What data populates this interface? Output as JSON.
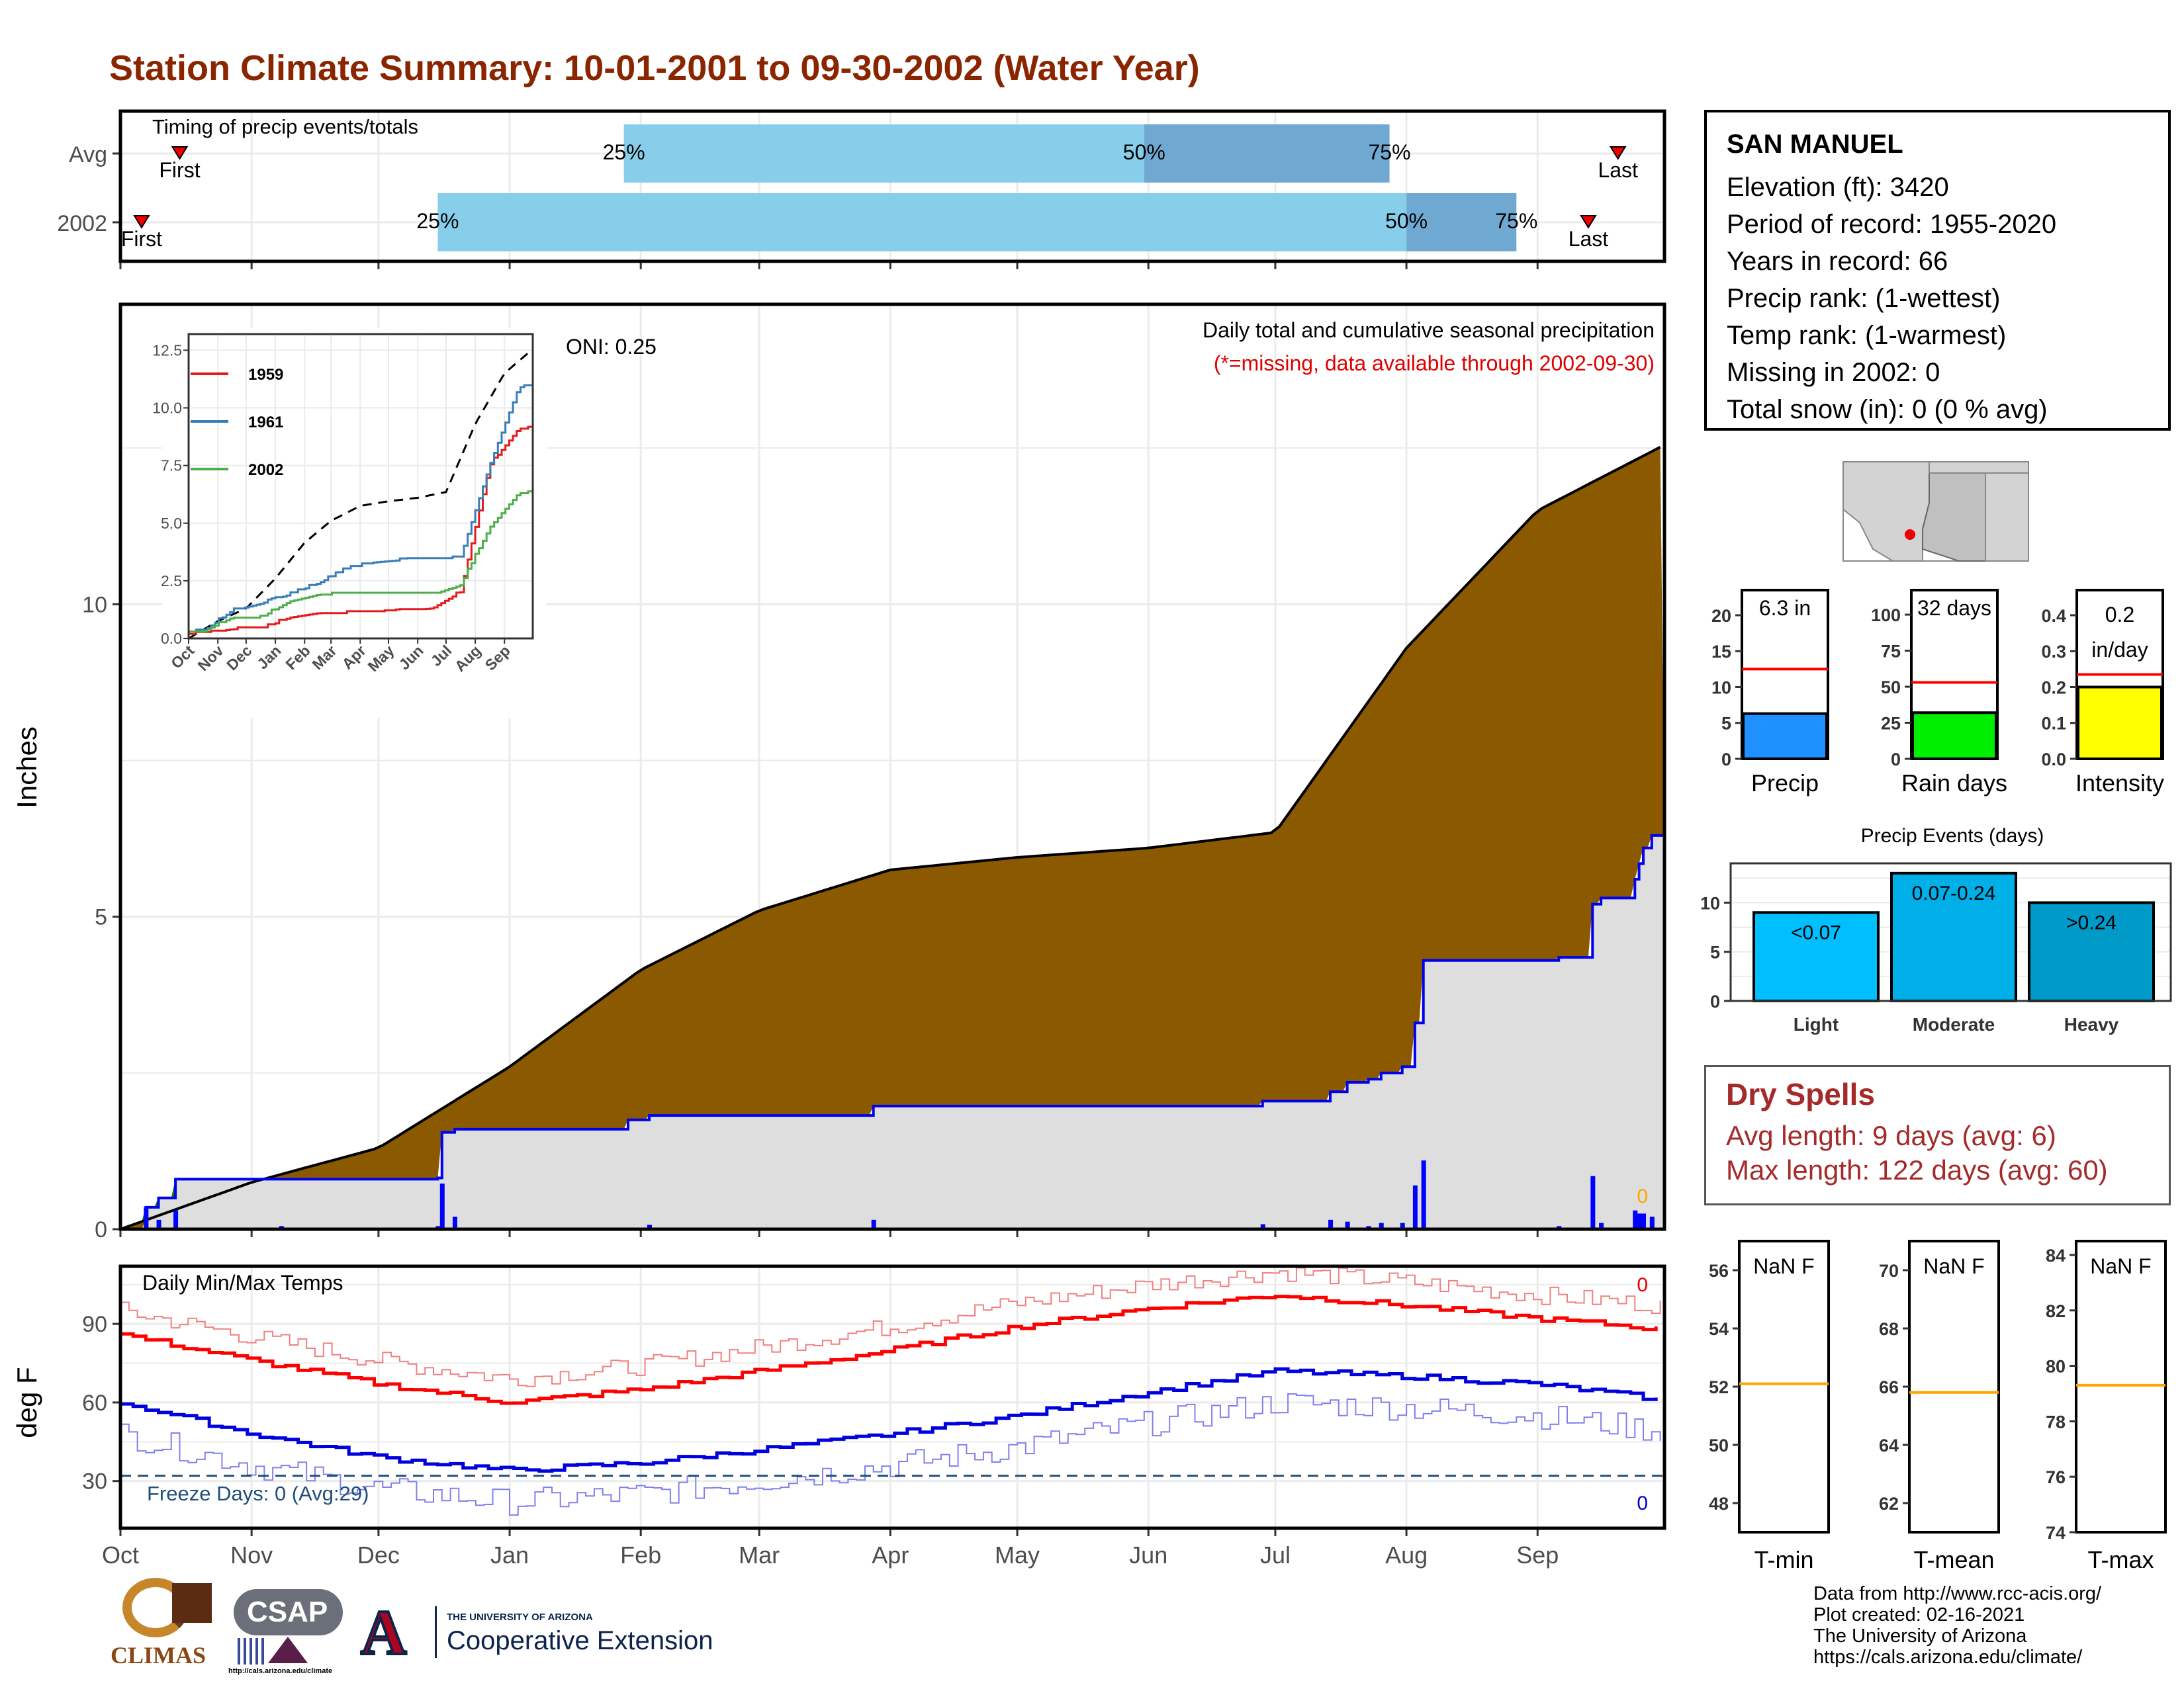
{
  "title": "Station Climate Summary: 10-01-2001 to 09-30-2002 (Water Year)",
  "months": [
    "Oct",
    "Nov",
    "Dec",
    "Jan",
    "Feb",
    "Mar",
    "Apr",
    "May",
    "Jun",
    "Jul",
    "Aug",
    "Sep"
  ],
  "timing": {
    "label": "Timing of precip events/totals",
    "rows": [
      {
        "name": "Avg",
        "first": "First",
        "last": "Last",
        "pct25": "25%",
        "pct50": "50%",
        "pct75": "75%",
        "first_day": 14,
        "p25_day": 119,
        "p50_day": 242,
        "p75_day": 300,
        "last_day": 354
      },
      {
        "name": "2002",
        "first": "First",
        "last": "Last",
        "pct25": "25%",
        "pct50": "50%",
        "pct75": "75%",
        "first_day": 5,
        "p25_day": 75,
        "p50_day": 304,
        "p75_day": 330,
        "last_day": 347
      }
    ]
  },
  "precip": {
    "ylabel": "Inches",
    "header": "Daily total and cumulative seasonal precipitation",
    "missing_note": "(*=missing, data available through 2002-09-30)",
    "oni": "ONI: 0.25",
    "missing_count": "0",
    "yticks": [
      "0",
      "5",
      "10"
    ],
    "colors": {
      "deficit": "#8b5a00",
      "surplus": "#008000",
      "cumulative": "#0000ee",
      "normal": "#000000"
    }
  },
  "inset": {
    "yticks": [
      "0.0",
      "2.5",
      "5.0",
      "7.5",
      "10.0",
      "12.5"
    ],
    "months": [
      "Oct",
      "Nov",
      "Dec",
      "Jan",
      "Feb",
      "Mar",
      "Apr",
      "May",
      "Jun",
      "Jul",
      "Aug",
      "Sep"
    ],
    "legend": [
      {
        "year": "1959",
        "color": "#e41a1c"
      },
      {
        "year": "1961",
        "color": "#377eb8"
      },
      {
        "year": "2002",
        "color": "#4daf4a"
      }
    ]
  },
  "temps": {
    "ylabel": "deg F",
    "label": "Daily Min/Max Temps",
    "freeze": "Freeze Days: 0 (Avg:29)",
    "max_count": "0",
    "min_count": "0",
    "yticks": [
      "30",
      "60",
      "90"
    ]
  },
  "station": {
    "name": "SAN MANUEL",
    "lines": [
      "Elevation (ft): 3420",
      "Period of record: 1955-2020",
      "Years in record: 66",
      "Precip rank:  (1-wettest)",
      "Temp rank:  (1-warmest)",
      "Missing in 2002: 0",
      "Total snow (in): 0 (0 % avg)"
    ]
  },
  "gauges": [
    {
      "label": "Precip",
      "value_text": "6.3 in",
      "value": 6.3,
      "avg": 12.5,
      "max": 23.5,
      "ticks": [
        "0",
        "5",
        "10",
        "15",
        "20"
      ],
      "color": "#1e90ff"
    },
    {
      "label": "Rain days",
      "value_text": "32 days",
      "value": 32,
      "avg": 53,
      "max": 117,
      "ticks": [
        "0",
        "25",
        "50",
        "75",
        "100"
      ],
      "color": "#00ee00"
    },
    {
      "label": "Intensity",
      "value_text1": "0.2",
      "value_text2": "in/day",
      "value": 0.2,
      "avg": 0.235,
      "max": 0.47,
      "ticks": [
        "0.0",
        "0.1",
        "0.2",
        "0.3",
        "0.4"
      ],
      "color": "#ffff00"
    }
  ],
  "events": {
    "title": "Precip Events (days)",
    "yticks": [
      "0",
      "5",
      "10"
    ],
    "bars": [
      {
        "label": "Light",
        "text": "<0.07",
        "value": 9,
        "color": "#00bfff"
      },
      {
        "label": "Moderate",
        "text": "0.07-0.24",
        "value": 13,
        "color": "#00afe8"
      },
      {
        "label": "Heavy",
        "text": ">0.24",
        "value": 10,
        "color": "#009ac8"
      }
    ]
  },
  "dry_spells": {
    "title": "Dry Spells",
    "avg_line": "Avg length: 9 days (avg: 6)",
    "max_line": "Max length: 122 days (avg: 60)"
  },
  "temp_gauges": [
    {
      "label": "T-min",
      "value_text": "NaN F",
      "ticks": [
        "48",
        "50",
        "52",
        "54",
        "56"
      ],
      "ref": 52.1
    },
    {
      "label": "T-mean",
      "value_text": "NaN F",
      "ticks": [
        "62",
        "64",
        "66",
        "68",
        "70"
      ],
      "ref": 65.8
    },
    {
      "label": "T-max",
      "value_text": "NaN F",
      "ticks": [
        "74",
        "76",
        "78",
        "80",
        "82",
        "84"
      ],
      "ref": 79.3
    }
  ],
  "footer": [
    "Data from http://www.rcc-acis.org/",
    "Plot created: 02-16-2021",
    "The University of Arizona",
    "https://cals.arizona.edu/climate/"
  ],
  "logos": {
    "climas": "CLIMAS",
    "csap": "CSAP",
    "csap_url": "http://cals.arizona.edu/climate",
    "ua_small": "THE UNIVERSITY OF ARIZONA",
    "coop": "Cooperative Extension",
    "ua_letter": "A"
  },
  "chart_data": [
    {
      "type": "bar",
      "title": "Timing of precip events/totals",
      "categories": [
        "Avg",
        "2002"
      ],
      "series": [
        {
          "name": "25%",
          "values": [
            119,
            75
          ]
        },
        {
          "name": "50%",
          "values": [
            242,
            304
          ]
        },
        {
          "name": "75%",
          "values": [
            300,
            330
          ]
        }
      ]
    },
    {
      "type": "area",
      "title": "Daily total and cumulative seasonal precipitation",
      "ylabel": "Inches",
      "ylim": [
        0,
        14
      ],
      "x": [
        "Oct",
        "Nov",
        "Dec",
        "Jan",
        "Feb",
        "Mar",
        "Apr",
        "May",
        "Jun",
        "Jul",
        "Aug",
        "Sep",
        "Sep30"
      ],
      "series": [
        {
          "name": "normal cumulative",
          "values": [
            0,
            0.75,
            1.3,
            2.6,
            4.15,
            5.1,
            5.75,
            5.95,
            6.1,
            6.35,
            9.3,
            11.5,
            12.55
          ]
        },
        {
          "name": "2002 cumulative",
          "values": [
            0,
            0.82,
            0.82,
            1.6,
            1.82,
            1.97,
            1.97,
            1.97,
            1.97,
            1.97,
            4.3,
            5.3,
            6.3
          ]
        }
      ]
    },
    {
      "type": "line",
      "title": "Daily Min/Max Temps",
      "ylabel": "deg F",
      "x": [
        "Oct",
        "Nov",
        "Dec",
        "Jan",
        "Feb",
        "Mar",
        "Apr",
        "May",
        "Jun",
        "Jul",
        "Aug",
        "Sep",
        "Sep30"
      ],
      "series": [
        {
          "name": "normal max",
          "values": [
            86,
            76,
            67,
            60,
            65,
            72,
            80,
            89,
            96,
            101,
            97,
            92,
            88
          ]
        },
        {
          "name": "normal min",
          "values": [
            60,
            48,
            39,
            34,
            37,
            42,
            48,
            55,
            64,
            72,
            70,
            67,
            61
          ]
        }
      ]
    },
    {
      "type": "line",
      "x": [
        "Oct",
        "Nov",
        "Dec",
        "Jan",
        "Feb",
        "Mar",
        "Apr",
        "May",
        "Jun",
        "Jul",
        "Aug",
        "Sep"
      ],
      "ylim": [
        0,
        13
      ],
      "series": [
        {
          "name": "1959",
          "values": [
            0.2,
            0.4,
            0.4,
            0.9,
            1.1,
            1.1,
            1.1,
            1.2,
            1.3,
            2.0,
            7.5,
            9.1
          ]
        },
        {
          "name": "1961",
          "values": [
            0.3,
            1.2,
            1.5,
            1.9,
            2.4,
            3.0,
            3.3,
            3.4,
            3.4,
            3.5,
            7.5,
            10.9
          ]
        },
        {
          "name": "2002",
          "values": [
            0.3,
            0.9,
            0.9,
            1.6,
            1.9,
            1.9,
            1.9,
            1.9,
            1.9,
            2.3,
            4.8,
            6.3
          ]
        }
      ]
    },
    {
      "type": "bar",
      "title": "Precip Events (days)",
      "categories": [
        "Light",
        "Moderate",
        "Heavy"
      ],
      "values": [
        9,
        13,
        10
      ]
    }
  ]
}
